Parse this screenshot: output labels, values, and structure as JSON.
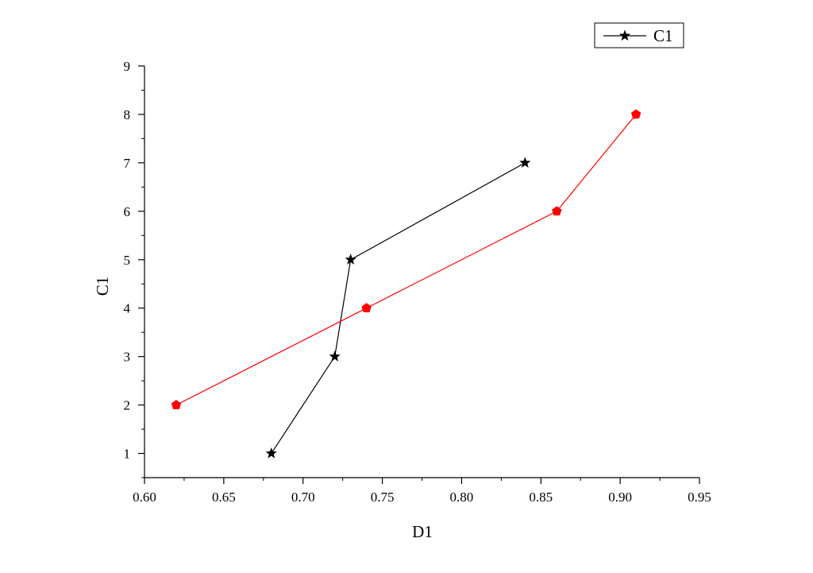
{
  "chart_data": {
    "type": "line",
    "xlabel": "D1",
    "ylabel": "C1",
    "xlim": [
      0.6,
      0.95
    ],
    "ylim": [
      0.5,
      9
    ],
    "x_ticks": [
      "0.60",
      "0.65",
      "0.70",
      "0.75",
      "0.80",
      "0.85",
      "0.90",
      "0.95"
    ],
    "y_ticks": [
      "1",
      "2",
      "3",
      "4",
      "5",
      "6",
      "7",
      "8",
      "9"
    ],
    "grid": false,
    "legend": {
      "placement": "top-right",
      "entries": [
        "C1"
      ]
    },
    "series": [
      {
        "name": "C1",
        "color": "#000000",
        "marker": "star",
        "points": [
          {
            "x": 0.68,
            "y": 1
          },
          {
            "x": 0.72,
            "y": 3
          },
          {
            "x": 0.73,
            "y": 5
          },
          {
            "x": 0.84,
            "y": 7
          }
        ]
      },
      {
        "color": "#ff0000",
        "marker": "pentagon",
        "points": [
          {
            "x": 0.62,
            "y": 2
          },
          {
            "x": 0.74,
            "y": 4
          },
          {
            "x": 0.86,
            "y": 6
          },
          {
            "x": 0.91,
            "y": 8
          }
        ]
      }
    ]
  }
}
